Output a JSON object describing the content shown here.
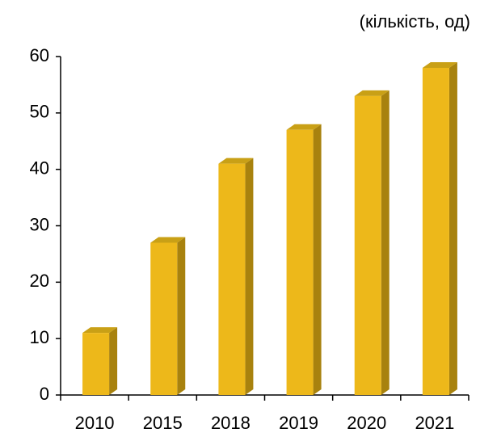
{
  "chart_data": {
    "type": "bar3d",
    "title": "(кількість, од)",
    "categories": [
      "2010",
      "2015",
      "2018",
      "2019",
      "2020",
      "2021"
    ],
    "values": [
      11,
      27,
      41,
      47,
      53,
      58
    ],
    "color": "#edb81a",
    "side_color": "#a8820e",
    "top_color": "#c9a016",
    "ylim": [
      0,
      60
    ],
    "yticks": [
      0,
      10,
      20,
      30,
      40,
      50,
      60
    ],
    "grid": false
  }
}
